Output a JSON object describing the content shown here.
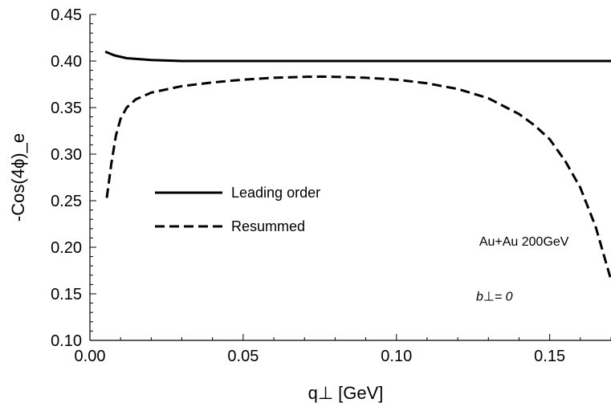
{
  "chart_data": {
    "type": "line",
    "xlabel": "q⊥ [GeV]",
    "ylabel": "-Cos(4ϕ)_e",
    "xlim": [
      0.0,
      0.17
    ],
    "ylim": [
      0.1,
      0.45
    ],
    "xticks": [
      0.0,
      0.05,
      0.1,
      0.15
    ],
    "xtick_labels": [
      "0.00",
      "0.05",
      "0.10",
      "0.15"
    ],
    "yticks": [
      0.1,
      0.15,
      0.2,
      0.25,
      0.3,
      0.35,
      0.4,
      0.45
    ],
    "ytick_labels": [
      "0.10",
      "0.15",
      "0.20",
      "0.25",
      "0.30",
      "0.35",
      "0.40",
      "0.45"
    ],
    "grid": false,
    "legend_position": "center-left",
    "series": [
      {
        "name": "Leading order",
        "style": "solid",
        "color": "#000000",
        "x": [
          0.005,
          0.008,
          0.012,
          0.02,
          0.03,
          0.05,
          0.08,
          0.1,
          0.13,
          0.15,
          0.17
        ],
        "y": [
          0.41,
          0.406,
          0.403,
          0.401,
          0.4,
          0.4,
          0.4,
          0.4,
          0.4,
          0.4,
          0.4
        ]
      },
      {
        "name": "Resummed",
        "style": "dashed",
        "color": "#000000",
        "x": [
          0.0055,
          0.007,
          0.0085,
          0.01,
          0.012,
          0.015,
          0.02,
          0.03,
          0.04,
          0.05,
          0.06,
          0.07,
          0.076,
          0.08,
          0.09,
          0.1,
          0.11,
          0.12,
          0.13,
          0.14,
          0.145,
          0.15,
          0.155,
          0.16,
          0.165,
          0.17
        ],
        "y": [
          0.253,
          0.29,
          0.32,
          0.338,
          0.35,
          0.359,
          0.366,
          0.373,
          0.377,
          0.38,
          0.382,
          0.383,
          0.3833,
          0.383,
          0.382,
          0.38,
          0.376,
          0.37,
          0.36,
          0.343,
          0.331,
          0.316,
          0.293,
          0.264,
          0.222,
          0.165
        ]
      }
    ],
    "annotations": [
      {
        "text": "Au+Au 200GeV",
        "x": 0.127,
        "y": 0.207
      },
      {
        "text": "b⊥= 0",
        "x": 0.126,
        "y": 0.148
      }
    ]
  }
}
